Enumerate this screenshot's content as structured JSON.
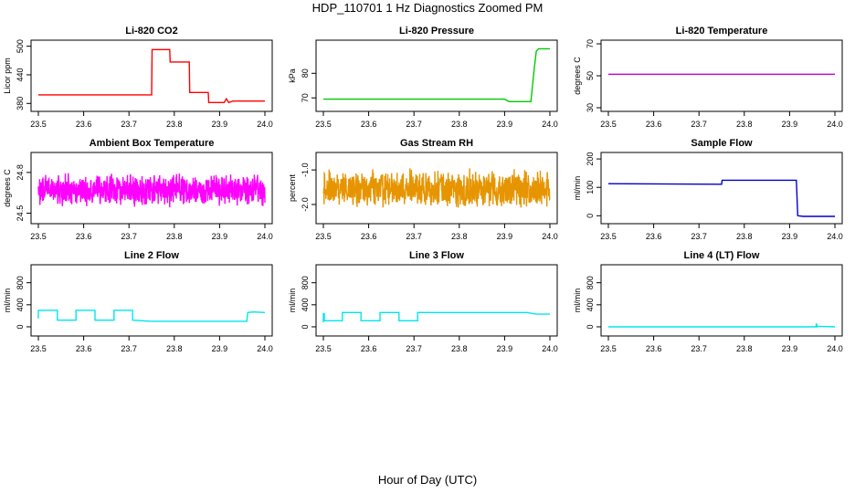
{
  "figure": {
    "title": "HDP_110701  1 Hz Diagnostics Zoomed PM",
    "xlabel": "Hour of Day (UTC)"
  },
  "chart_data": [
    {
      "type": "line",
      "title": "Li-820 CO2",
      "ylabel": "Licor ppm",
      "xlim": [
        23.5,
        24.0
      ],
      "ylim": [
        371,
        505
      ],
      "xticks": [
        "23.5",
        "23.6",
        "23.7",
        "23.8",
        "23.9",
        "24.0"
      ],
      "yticks": [
        380,
        440,
        500
      ],
      "ytick_labels": [
        "380",
        "440",
        "500"
      ],
      "color": "#ff0000",
      "series": [
        {
          "x": [
            23.5,
            23.75,
            23.751,
            23.79,
            23.791,
            23.833,
            23.834,
            23.875,
            23.876,
            23.91,
            23.915,
            23.92,
            23.93,
            24.0
          ],
          "y": [
            398,
            398,
            493,
            493,
            467,
            467,
            403,
            403,
            382,
            382,
            390,
            382,
            385,
            385
          ]
        }
      ]
    },
    {
      "type": "line",
      "title": "Li-820 Pressure",
      "ylabel": "kPa",
      "xlim": [
        23.5,
        24.0
      ],
      "ylim": [
        66,
        92
      ],
      "xticks": [
        "23.5",
        "23.6",
        "23.7",
        "23.8",
        "23.9",
        "24.0"
      ],
      "yticks": [
        70,
        80
      ],
      "ytick_labels": [
        "70",
        "80"
      ],
      "color": "#00cc00",
      "series": [
        {
          "x": [
            23.5,
            23.7,
            23.9,
            23.91,
            23.958,
            23.965,
            23.97,
            23.975,
            24.0
          ],
          "y": [
            69.5,
            69.5,
            69.5,
            68.5,
            68.5,
            81,
            89,
            90,
            90
          ]
        }
      ]
    },
    {
      "type": "line",
      "title": "Li-820 Temperature",
      "ylabel": "degrees C",
      "xlim": [
        23.5,
        24.0
      ],
      "ylim": [
        30,
        70
      ],
      "xticks": [
        "23.5",
        "23.6",
        "23.7",
        "23.8",
        "23.9",
        "24.0"
      ],
      "yticks": [
        30,
        50,
        70
      ],
      "ytick_labels": [
        "30",
        "50",
        "70"
      ],
      "color": "#cc00cc",
      "series": [
        {
          "x": [
            23.5,
            24.0
          ],
          "y": [
            51,
            51
          ]
        }
      ]
    },
    {
      "type": "line",
      "title": "Ambient Box Temperature",
      "ylabel": "degrees C",
      "xlim": [
        23.5,
        24.0
      ],
      "ylim": [
        24.45,
        24.92
      ],
      "xticks": [
        "23.5",
        "23.6",
        "23.7",
        "23.8",
        "23.9",
        "24.0"
      ],
      "yticks": [
        24.5,
        24.8
      ],
      "ytick_labels": [
        "24.5",
        "24.8"
      ],
      "color": "#ff00ff",
      "noise": {
        "center": 24.67,
        "amplitude": 0.13
      }
    },
    {
      "type": "line",
      "title": "Gas Stream RH",
      "ylabel": "percent",
      "xlim": [
        23.5,
        24.0
      ],
      "ylim": [
        -2.45,
        -0.6
      ],
      "xticks": [
        "23.5",
        "23.6",
        "23.7",
        "23.8",
        "23.9",
        "24.0"
      ],
      "yticks": [
        -2.0,
        -1.0
      ],
      "ytick_labels": [
        "-2.0",
        "-1.0"
      ],
      "color": "#e69500",
      "noise": {
        "center": -1.55,
        "amplitude": 0.6
      }
    },
    {
      "type": "line",
      "title": "Sample Flow",
      "ylabel": "ml/min",
      "xlim": [
        23.5,
        24.0
      ],
      "ylim": [
        -15,
        210
      ],
      "xticks": [
        "23.5",
        "23.6",
        "23.7",
        "23.8",
        "23.9",
        "24.0"
      ],
      "yticks": [
        0,
        100,
        200
      ],
      "ytick_labels": [
        "0",
        "100",
        "200"
      ],
      "color": "#0000cc",
      "series": [
        {
          "x": [
            23.5,
            23.75,
            23.751,
            23.915,
            23.918,
            23.93,
            24.0
          ],
          "y": [
            113,
            111,
            125,
            125,
            0,
            -2,
            -2
          ]
        }
      ]
    },
    {
      "type": "line",
      "title": "Line 2 Flow",
      "ylabel": "ml/min",
      "xlim": [
        23.5,
        24.0
      ],
      "ylim": [
        -100,
        1060
      ],
      "xticks": [
        "23.5",
        "23.6",
        "23.7",
        "23.8",
        "23.9",
        "24.0"
      ],
      "yticks": [
        0,
        400,
        800
      ],
      "ytick_labels": [
        "0",
        "400",
        "800"
      ],
      "color": "#00e5ee",
      "series": [
        {
          "x": [
            23.5,
            23.5,
            23.542,
            23.542,
            23.583,
            23.583,
            23.625,
            23.625,
            23.667,
            23.667,
            23.708,
            23.708,
            23.75,
            23.96,
            23.962,
            23.975,
            24.0
          ],
          "y": [
            150,
            300,
            300,
            120,
            120,
            300,
            300,
            120,
            120,
            300,
            300,
            120,
            100,
            100,
            260,
            270,
            260
          ]
        }
      ]
    },
    {
      "type": "line",
      "title": "Line 3 Flow",
      "ylabel": "ml/min",
      "xlim": [
        23.5,
        24.0
      ],
      "ylim": [
        -100,
        1060
      ],
      "xticks": [
        "23.5",
        "23.6",
        "23.7",
        "23.8",
        "23.9",
        "24.0"
      ],
      "yticks": [
        0,
        400,
        800
      ],
      "ytick_labels": [
        "0",
        "400",
        "800"
      ],
      "color": "#00e5ee",
      "series": [
        {
          "x": [
            23.5,
            23.5,
            23.502,
            23.502,
            23.542,
            23.542,
            23.583,
            23.583,
            23.625,
            23.625,
            23.667,
            23.667,
            23.708,
            23.708,
            23.95,
            23.97,
            24.0
          ],
          "y": [
            80,
            240,
            240,
            110,
            110,
            260,
            260,
            110,
            110,
            260,
            260,
            110,
            110,
            260,
            260,
            230,
            230
          ]
        }
      ]
    },
    {
      "type": "line",
      "title": "Line 4 (LT) Flow",
      "ylabel": "ml/min",
      "xlim": [
        23.5,
        24.0
      ],
      "ylim": [
        -100,
        1060
      ],
      "xticks": [
        "23.5",
        "23.6",
        "23.7",
        "23.8",
        "23.9",
        "24.0"
      ],
      "yticks": [
        0,
        400,
        800
      ],
      "ytick_labels": [
        "0",
        "400",
        "800"
      ],
      "color": "#00e5ee",
      "series": [
        {
          "x": [
            23.5,
            23.958,
            23.959,
            23.961,
            23.963,
            24.0
          ],
          "y": [
            0,
            0,
            60,
            0,
            10,
            0
          ]
        }
      ]
    }
  ]
}
